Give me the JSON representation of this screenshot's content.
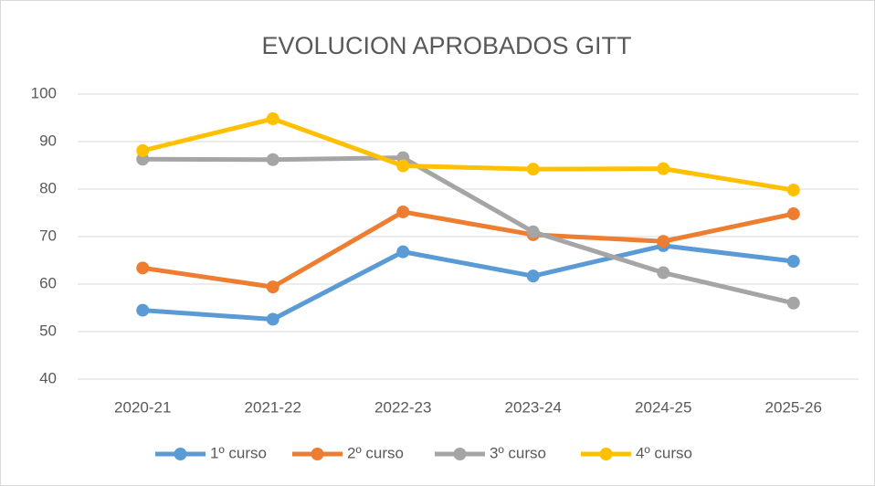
{
  "chart_data": {
    "type": "line",
    "title": "EVOLUCION APROBADOS GITT",
    "categories": [
      "2020-21",
      "2021-22",
      "2022-23",
      "2023-24",
      "2024-25",
      "2025-26"
    ],
    "series": [
      {
        "name": "1º curso",
        "color": "#5b9bd5",
        "values": [
          54.5,
          52.6,
          66.8,
          61.7,
          68.1,
          64.8
        ]
      },
      {
        "name": "2º curso",
        "color": "#ed7d31",
        "values": [
          63.4,
          59.4,
          75.2,
          70.4,
          69.0,
          74.8
        ]
      },
      {
        "name": "3º curso",
        "color": "#a5a5a5",
        "values": [
          86.3,
          86.2,
          86.6,
          71.0,
          62.4,
          56.0
        ]
      },
      {
        "name": "4º curso",
        "color": "#ffc000",
        "values": [
          88.1,
          94.8,
          84.9,
          84.2,
          84.3,
          79.8
        ]
      }
    ],
    "ylim": [
      40,
      100
    ],
    "yticks": [
      40,
      50,
      60,
      70,
      80,
      90,
      100
    ],
    "grid": true,
    "legend": "bottom"
  }
}
